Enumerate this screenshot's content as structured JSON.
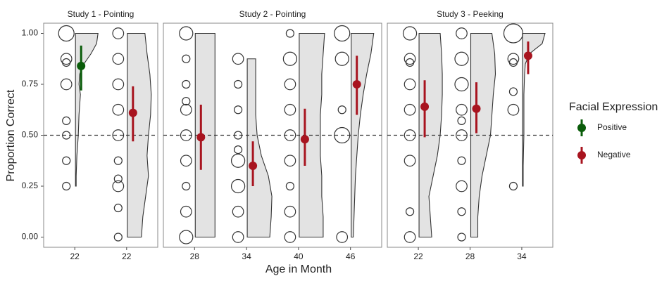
{
  "chart_data": {
    "type": "raincloud",
    "y_label": "Proportion Correct",
    "x_label": "Age in Month",
    "legend_title": "Facial Expression",
    "legend_position": "right",
    "ylim": [
      -0.05,
      1.05
    ],
    "yticks": [
      {
        "value": 0,
        "label": "0.00"
      },
      {
        "value": 0.25,
        "label": "0.25"
      },
      {
        "value": 0.5,
        "label": "0.50"
      },
      {
        "value": 0.75,
        "label": "0.75"
      },
      {
        "value": 1,
        "label": "1.00"
      }
    ],
    "reference_line": 0.5,
    "series": [
      {
        "name": "Positive",
        "color": "#0a5c0a"
      },
      {
        "name": "Negative",
        "color": "#a8141f"
      }
    ],
    "violin_color": "#e3e3e3",
    "facets": [
      {
        "title": "Study 1 - Pointing",
        "categories": [
          "22",
          "22"
        ],
        "series": [
          {
            "values": [
              0.84,
              null
            ],
            "ci_low": [
              0.72,
              null
            ],
            "ci_high": [
              0.94,
              null
            ]
          },
          {
            "values": [
              null,
              0.61
            ],
            "ci_low": [
              null,
              0.47
            ],
            "ci_high": [
              null,
              0.74
            ]
          }
        ],
        "dots": [
          {
            "y": [
              1,
              0.875,
              0.857,
              0.75,
              0.571,
              0.5,
              0.375,
              0.25
            ],
            "count": [
              4,
              2,
              1,
              2,
              1,
              1,
              1,
              1
            ]
          },
          {
            "y": [
              1,
              0.875,
              0.75,
              0.625,
              0.5,
              0.375,
              0.286,
              0.25,
              0.143,
              0
            ],
            "count": [
              2,
              2,
              2,
              2,
              2,
              1,
              1,
              2,
              1,
              1
            ]
          }
        ],
        "violins": [
          {
            "y": [
              1,
              0.95,
              0.9,
              0.85,
              0.8,
              0.75,
              0.7,
              0.6,
              0.5,
              0.4,
              0.3,
              0.25
            ],
            "density": [
              32,
              30,
              22,
              12,
              6,
              5,
              7,
              5,
              4,
              2,
              1,
              1
            ]
          },
          {
            "y": [
              1,
              0.9,
              0.8,
              0.7,
              0.6,
              0.5,
              0.4,
              0.3,
              0.2,
              0.1,
              0
            ],
            "density": [
              25,
              28,
              32,
              34,
              33,
              30,
              28,
              30,
              26,
              22,
              20
            ]
          }
        ]
      },
      {
        "title": "Study 2 - Pointing",
        "categories": [
          "28",
          "34",
          "40",
          "46"
        ],
        "series": [
          {
            "values": [
              null,
              null,
              null,
              null
            ],
            "ci_low": [
              null,
              null,
              null,
              null
            ],
            "ci_high": [
              null,
              null,
              null,
              null
            ]
          },
          {
            "values": [
              0.49,
              0.35,
              0.48,
              0.75
            ],
            "ci_low": [
              0.33,
              0.25,
              0.35,
              0.6
            ],
            "ci_high": [
              0.65,
              0.47,
              0.63,
              0.89
            ]
          }
        ],
        "dots": [
          {
            "y": [
              1,
              0.875,
              0.75,
              0.667,
              0.625,
              0.5,
              0.375,
              0.25,
              0.125,
              0
            ],
            "count": [
              3,
              1,
              1,
              1,
              2,
              2,
              2,
              1,
              2,
              3
            ]
          },
          {
            "y": [
              0.875,
              0.75,
              0.625,
              0.5,
              0.429,
              0.375,
              0.25,
              0.125,
              0
            ],
            "count": [
              2,
              1,
              1,
              1,
              1,
              3,
              3,
              2,
              2
            ]
          },
          {
            "y": [
              1,
              0.875,
              0.75,
              0.625,
              0.5,
              0.375,
              0.25,
              0.125,
              0
            ],
            "count": [
              1,
              3,
              2,
              2,
              2,
              2,
              1,
              2,
              2
            ]
          },
          {
            "y": [
              1,
              0.875,
              0.625,
              0.5,
              0
            ],
            "count": [
              4,
              3,
              1,
              4,
              2
            ]
          }
        ],
        "violins": [
          {
            "y": [
              1,
              0.9,
              0.8,
              0.7,
              0.6,
              0.5,
              0.4,
              0.3,
              0.2,
              0.1,
              0
            ],
            "density": [
              28,
              28,
              28,
              28,
              28,
              28,
              28,
              28,
              28,
              28,
              28
            ]
          },
          {
            "y": [
              0.875,
              0.8,
              0.7,
              0.6,
              0.5,
              0.4,
              0.3,
              0.2,
              0.1,
              0
            ],
            "density": [
              12,
              12,
              12,
              12,
              14,
              20,
              30,
              35,
              34,
              32
            ]
          },
          {
            "y": [
              1,
              0.9,
              0.8,
              0.7,
              0.6,
              0.5,
              0.4,
              0.3,
              0.2,
              0.1,
              0
            ],
            "density": [
              36,
              34,
              32,
              32,
              30,
              30,
              30,
              32,
              32,
              34,
              34
            ]
          },
          {
            "y": [
              1,
              0.9,
              0.8,
              0.7,
              0.6,
              0.5,
              0.4,
              0.3,
              0.2,
              0.1,
              0
            ],
            "density": [
              32,
              28,
              22,
              17,
              13,
              10,
              8,
              6,
              5,
              4,
              3
            ]
          }
        ]
      },
      {
        "title": "Study 3 - Peeking",
        "categories": [
          "22",
          "28",
          "34"
        ],
        "series": [
          {
            "values": [
              null,
              null,
              null
            ],
            "ci_low": [
              null,
              null,
              null
            ],
            "ci_high": [
              null,
              null,
              null
            ]
          },
          {
            "values": [
              0.64,
              0.63,
              0.89
            ],
            "ci_low": [
              0.49,
              0.51,
              0.8
            ],
            "ci_high": [
              0.77,
              0.76,
              0.96
            ]
          }
        ],
        "dots": [
          {
            "y": [
              1,
              0.875,
              0.857,
              0.75,
              0.625,
              0.5,
              0.375,
              0.125,
              0
            ],
            "count": [
              3,
              2,
              1,
              2,
              2,
              2,
              2,
              1,
              2
            ]
          },
          {
            "y": [
              1,
              0.875,
              0.75,
              0.625,
              0.571,
              0.5,
              0.375,
              0.25,
              0.125,
              0
            ],
            "count": [
              2,
              3,
              3,
              2,
              1,
              2,
              1,
              2,
              1,
              1
            ]
          },
          {
            "y": [
              1,
              0.875,
              0.857,
              0.714,
              0.625,
              0.25
            ],
            "count": [
              6,
              2,
              1,
              1,
              2,
              1
            ]
          }
        ],
        "violins": [
          {
            "y": [
              1,
              0.9,
              0.8,
              0.7,
              0.6,
              0.5,
              0.4,
              0.3,
              0.2,
              0.1,
              0
            ],
            "density": [
              30,
              32,
              33,
              33,
              32,
              30,
              26,
              20,
              14,
              16,
              18
            ]
          },
          {
            "y": [
              1,
              0.9,
              0.8,
              0.7,
              0.6,
              0.5,
              0.4,
              0.3,
              0.2,
              0.1,
              0
            ],
            "density": [
              30,
              34,
              35,
              32,
              30,
              28,
              22,
              16,
              12,
              10,
              10
            ]
          },
          {
            "y": [
              1,
              0.95,
              0.9,
              0.85,
              0.8,
              0.7,
              0.5,
              0.35,
              0.25
            ],
            "density": [
              32,
              28,
              10,
              4,
              3,
              2,
              2,
              1,
              1
            ]
          }
        ]
      }
    ]
  }
}
